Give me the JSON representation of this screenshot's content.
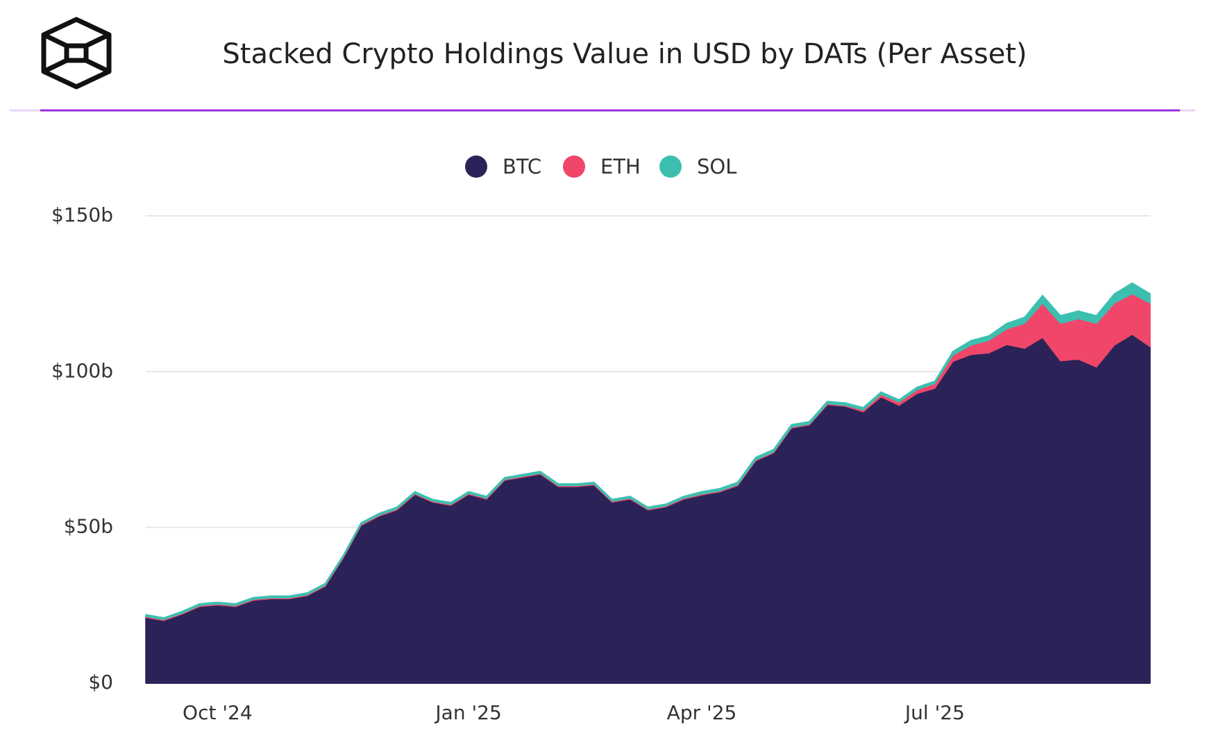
{
  "chart_data": {
    "type": "stacked_area",
    "title": "Stacked Crypto Holdings Value in USD by DATs (Per Asset)",
    "categories": [
      null,
      null,
      null,
      null,
      "Oct '24",
      null,
      null,
      null,
      null,
      null,
      null,
      null,
      null,
      null,
      null,
      null,
      null,
      null,
      "Jan '25",
      null,
      null,
      null,
      null,
      null,
      null,
      null,
      null,
      null,
      null,
      null,
      null,
      "Apr '25",
      null,
      null,
      null,
      null,
      null,
      null,
      null,
      null,
      null,
      null,
      null,
      null,
      "Jul '25",
      null,
      null,
      null,
      null,
      null,
      null,
      null,
      null,
      null,
      null,
      null,
      null
    ],
    "series": [
      {
        "name": "BTC",
        "color": "#2b2358",
        "values": [
          21.1,
          20.1,
          22.1,
          24.6,
          25.1,
          24.6,
          26.6,
          27.1,
          27.1,
          28.1,
          31.1,
          40.1,
          50.6,
          53.6,
          55.6,
          60.6,
          58.1,
          57.1,
          60.6,
          59.1,
          65.1,
          66.1,
          67.1,
          63.1,
          63.1,
          63.6,
          58.1,
          59.1,
          55.6,
          56.6,
          59.1,
          60.4,
          61.4,
          63.4,
          71.4,
          73.9,
          81.9,
          82.9,
          89.4,
          88.9,
          87.1,
          91.9,
          89.2,
          93,
          94.7,
          103.3,
          105.5,
          106,
          108.7,
          107.5,
          111,
          103.5,
          104,
          101.5,
          108.5,
          112,
          108
        ]
      },
      {
        "name": "ETH",
        "color": "#f0466a",
        "values": [
          0.3,
          0.3,
          0.3,
          0.3,
          0.3,
          0.3,
          0.3,
          0.3,
          0.3,
          0.3,
          0.3,
          0.3,
          0.3,
          0.3,
          0.3,
          0.3,
          0.3,
          0.3,
          0.3,
          0.3,
          0.3,
          0.3,
          0.3,
          0.3,
          0.3,
          0.3,
          0.3,
          0.3,
          0.3,
          0.3,
          0.3,
          0.3,
          0.3,
          0.3,
          0.3,
          0.3,
          0.3,
          0.3,
          0.3,
          0.3,
          0.6,
          0.8,
          1,
          1.2,
          1.5,
          2,
          3,
          4,
          5,
          8,
          11,
          12,
          13,
          14,
          13.5,
          13,
          14
        ]
      },
      {
        "name": "SOL",
        "color": "#3dbfb0",
        "values": [
          0.6,
          0.6,
          0.6,
          0.6,
          0.6,
          0.6,
          0.6,
          0.6,
          0.6,
          0.6,
          0.6,
          0.6,
          0.6,
          0.6,
          0.6,
          0.6,
          0.6,
          0.6,
          0.6,
          0.6,
          0.6,
          0.6,
          0.6,
          0.6,
          0.6,
          0.6,
          0.6,
          0.6,
          0.6,
          0.6,
          0.6,
          0.8,
          0.8,
          0.8,
          0.8,
          0.8,
          0.8,
          0.8,
          0.8,
          0.8,
          0.8,
          0.8,
          0.8,
          0.8,
          0.8,
          1.2,
          1.5,
          1.5,
          1.8,
          2,
          2.5,
          2.5,
          2.5,
          2.5,
          3,
          3.5,
          3
        ]
      }
    ],
    "ylim": [
      0,
      150
    ],
    "yticks": [
      {
        "value": 0,
        "label": "$0"
      },
      {
        "value": 50,
        "label": "$50b"
      },
      {
        "value": 100,
        "label": "$100b"
      },
      {
        "value": 150,
        "label": "$150b"
      }
    ],
    "grid": true,
    "legend": "top"
  }
}
